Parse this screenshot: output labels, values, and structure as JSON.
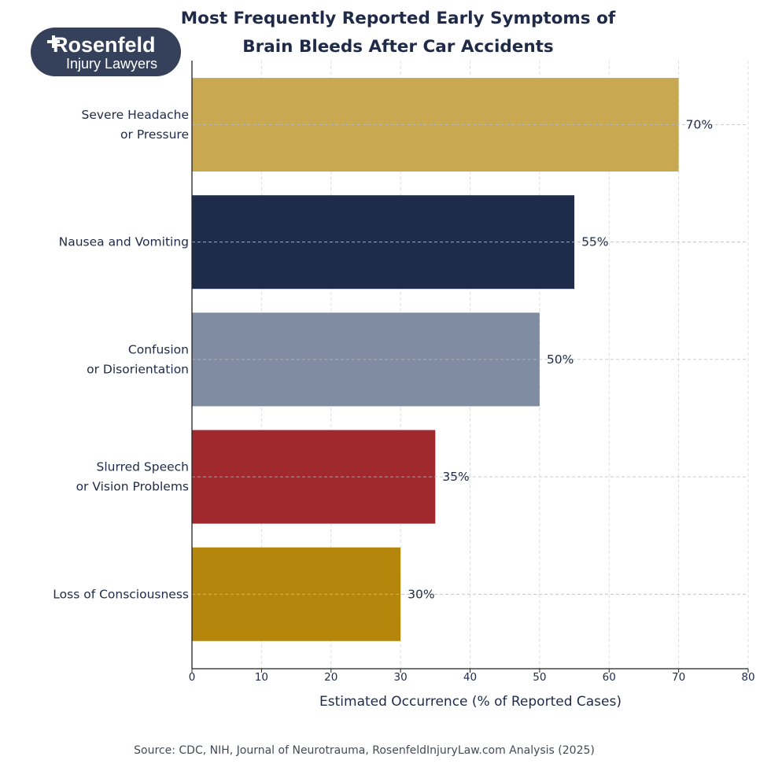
{
  "logo": {
    "name": "Rosenfeld",
    "subtitle": "Injury Lawyers",
    "background": "#35415a"
  },
  "chart_data": {
    "type": "bar",
    "orientation": "horizontal",
    "title_lines": [
      "Most Frequently Reported Early Symptoms of",
      "Brain Bleeds After Car Accidents"
    ],
    "categories": [
      [
        "Severe Headache",
        "or Pressure"
      ],
      [
        "Nausea and Vomiting"
      ],
      [
        "Confusion",
        "or Disorientation"
      ],
      [
        "Slurred Speech",
        "or Vision Problems"
      ],
      [
        "Loss of Consciousness"
      ]
    ],
    "values": [
      70,
      55,
      50,
      35,
      30
    ],
    "value_labels": [
      "70%",
      "55%",
      "50%",
      "35%",
      "30%"
    ],
    "colors": [
      "#c9a852",
      "#1e2b4a",
      "#7f8ca2",
      "#a0292d",
      "#b5860c"
    ],
    "xlabel": "Estimated Occurrence (% of Reported Cases)",
    "xlim": [
      0,
      80
    ],
    "xticks": [
      0,
      10,
      20,
      30,
      40,
      50,
      60,
      70,
      80
    ],
    "grid": true,
    "source": "Source: CDC, NIH, Journal of Neurotrauma, RosenfeldInjuryLaw.com Analysis (2025)"
  }
}
